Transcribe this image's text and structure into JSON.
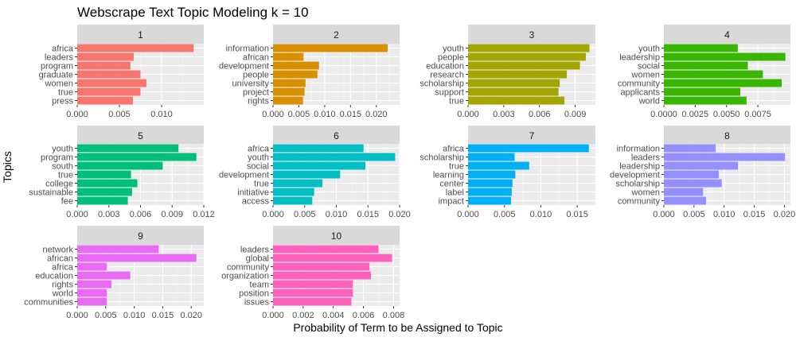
{
  "chart_data": {
    "type": "bar",
    "title": "Webscrape Text Topic Modeling k = 10",
    "xlabel": "Probability of Term to be Assigned to Topic",
    "ylabel": "Topics",
    "orientation": "horizontal",
    "facets": [
      {
        "label": "1",
        "color": "#F8766D",
        "xlim": [
          0,
          0.015
        ],
        "ticks": [
          0,
          0.005,
          0.01
        ],
        "tick_labels": [
          "0.000",
          "0.005",
          "0.010"
        ],
        "terms": [
          "africa",
          "leaders",
          "program",
          "graduate",
          "women",
          "true",
          "press"
        ],
        "values": [
          0.0138,
          0.0067,
          0.0063,
          0.0075,
          0.0082,
          0.0075,
          0.0066
        ]
      },
      {
        "label": "2",
        "color": "#D89000",
        "xlim": [
          0,
          0.0245
        ],
        "ticks": [
          0,
          0.005,
          0.01,
          0.015,
          0.02
        ],
        "tick_labels": [
          "0.000",
          "0.005",
          "0.010",
          "0.015",
          "0.020"
        ],
        "terms": [
          "information",
          "african",
          "development",
          "people",
          "university",
          "project",
          "rights"
        ],
        "values": [
          0.0222,
          0.0059,
          0.0089,
          0.0086,
          0.0063,
          0.0061,
          0.0058
        ]
      },
      {
        "label": "3",
        "color": "#A3A500",
        "xlim": [
          0,
          0.0107
        ],
        "ticks": [
          0,
          0.003,
          0.006,
          0.009
        ],
        "tick_labels": [
          "0.000",
          "0.003",
          "0.006",
          "0.009"
        ],
        "terms": [
          "youth",
          "people",
          "education",
          "research",
          "scholarship",
          "support",
          "true"
        ],
        "values": [
          0.0102,
          0.0099,
          0.0094,
          0.0083,
          0.0077,
          0.0076,
          0.0081
        ]
      },
      {
        "label": "4",
        "color": "#39B600",
        "xlim": [
          0,
          0.0101
        ],
        "ticks": [
          0,
          0.0025,
          0.005,
          0.0075
        ],
        "tick_labels": [
          "0.0000",
          "0.0025",
          "0.0050",
          "0.0075"
        ],
        "terms": [
          "youth",
          "leadership",
          "social",
          "women",
          "community",
          "applicants",
          "world"
        ],
        "values": [
          0.0059,
          0.0097,
          0.0067,
          0.0079,
          0.0094,
          0.0061,
          0.0066
        ]
      },
      {
        "label": "5",
        "color": "#00BF7D",
        "xlim": [
          0,
          0.012
        ],
        "ticks": [
          0,
          0.003,
          0.006,
          0.009,
          0.012
        ],
        "tick_labels": [
          "0.000",
          "0.003",
          "0.006",
          "0.009",
          "0.012"
        ],
        "terms": [
          "youth",
          "program",
          "south",
          "true",
          "college",
          "sustainable",
          "fee"
        ],
        "values": [
          0.0096,
          0.0113,
          0.0081,
          0.0051,
          0.0057,
          0.0052,
          0.0048
        ]
      },
      {
        "label": "6",
        "color": "#00BFC4",
        "xlim": [
          0,
          0.02
        ],
        "ticks": [
          0,
          0.005,
          0.01,
          0.015,
          0.02
        ],
        "tick_labels": [
          "0.000",
          "0.005",
          "0.010",
          "0.015",
          "0.020"
        ],
        "terms": [
          "africa",
          "youth",
          "social",
          "development",
          "true",
          "initiative",
          "access"
        ],
        "values": [
          0.0143,
          0.0193,
          0.0146,
          0.0106,
          0.0078,
          0.0065,
          0.0062
        ]
      },
      {
        "label": "7",
        "color": "#00B0F6",
        "xlim": [
          0,
          0.0175
        ],
        "ticks": [
          0,
          0.005,
          0.01,
          0.015
        ],
        "tick_labels": [
          "0.000",
          "0.005",
          "0.010",
          "0.015"
        ],
        "terms": [
          "africa",
          "scholarship",
          "true",
          "learning",
          "center",
          "label",
          "impact"
        ],
        "values": [
          0.0166,
          0.0064,
          0.0084,
          0.0065,
          0.0061,
          0.006,
          0.0059
        ]
      },
      {
        "label": "8",
        "color": "#9590FF",
        "xlim": [
          0,
          0.021
        ],
        "ticks": [
          0,
          0.005,
          0.01,
          0.015,
          0.02
        ],
        "tick_labels": [
          "0.000",
          "0.005",
          "0.010",
          "0.015",
          "0.020"
        ],
        "terms": [
          "information",
          "leaders",
          "leadership",
          "development",
          "scholarship",
          "women",
          "community"
        ],
        "values": [
          0.0086,
          0.0201,
          0.0123,
          0.0091,
          0.0096,
          0.0065,
          0.007
        ]
      },
      {
        "label": "9",
        "color": "#E76BF3",
        "xlim": [
          0,
          0.0222
        ],
        "ticks": [
          0,
          0.005,
          0.01,
          0.015,
          0.02
        ],
        "tick_labels": [
          "0.000",
          "0.005",
          "0.010",
          "0.015",
          "0.020"
        ],
        "terms": [
          "network",
          "african",
          "africa",
          "education",
          "rights",
          "world",
          "communities"
        ],
        "values": [
          0.0143,
          0.0209,
          0.0052,
          0.0093,
          0.006,
          0.0052,
          0.0052
        ]
      },
      {
        "label": "10",
        "color": "#FF62BC",
        "xlim": [
          0,
          0.0084
        ],
        "ticks": [
          0,
          0.002,
          0.004,
          0.006,
          0.008
        ],
        "tick_labels": [
          "0.000",
          "0.002",
          "0.004",
          "0.006",
          "0.008"
        ],
        "terms": [
          "leaders",
          "global",
          "community",
          "organization",
          "team",
          "position",
          "issues"
        ],
        "values": [
          0.007,
          0.0079,
          0.0064,
          0.0065,
          0.0053,
          0.0053,
          0.0052
        ]
      }
    ]
  }
}
